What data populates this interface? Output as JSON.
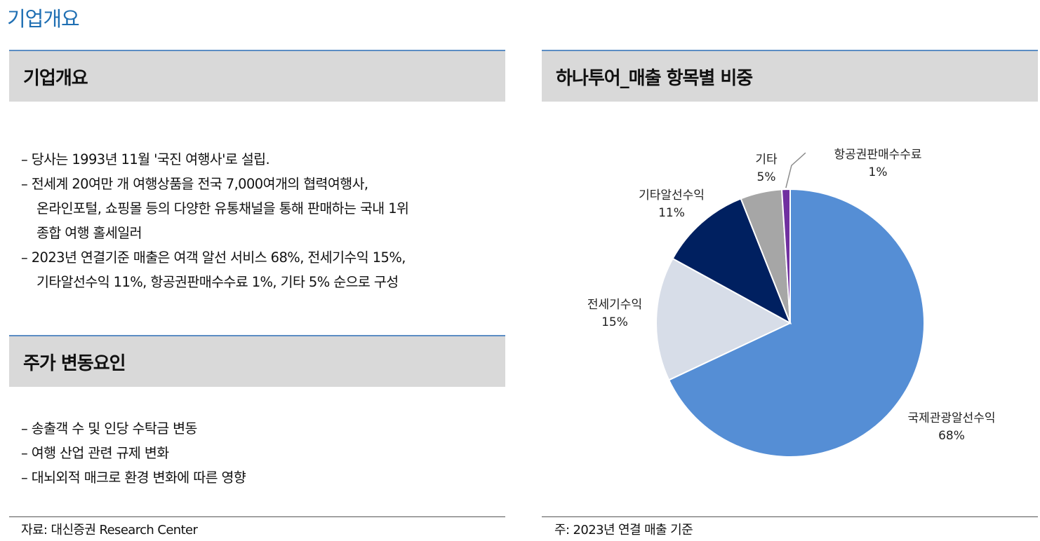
{
  "page_title": "기업개요",
  "left": {
    "overview_heading": "기업개요",
    "overview_lines": [
      "– 당사는 1993년 11월 '국진 여행사'로 설립.",
      "–  전세계  20여만  개  여행상품을  전국  7,000여개의  협력여행사,",
      "온라인포털, 쇼핑몰 등의 다양한 유통채널을 통해 판매하는 국내 1위",
      "종합 여행 홀세일러",
      "–  2023년  연결기준  매출은  여객  알선  서비스  68%,  전세기수익  15%,",
      "기타알선수익 11%, 항공권판매수수료 1%, 기타 5% 순으로 구성"
    ],
    "factors_heading": "주가 변동요인",
    "factors_lines": [
      "– 송출객 수 및 인당 수탁금 변동",
      "– 여행 산업 관련 규제 변화",
      "– 대뇌외적 매크로 환경 변화에 따른 영향"
    ],
    "source": "자료: 대신증권 Research Center"
  },
  "right": {
    "chart_heading": "하나투어_매출 항목별 비중",
    "note": "주: 2023년 연결 매출 기준"
  },
  "chart_data": {
    "type": "pie",
    "title": "하나투어_매출 항목별 비중",
    "start_angle_deg": 0,
    "direction": "clockwise",
    "slices": [
      {
        "label": "국제관광알선수익",
        "value": 68,
        "display": "68%",
        "color": "#558ed5"
      },
      {
        "label": "전세기수익",
        "value": 15,
        "display": "15%",
        "color": "#d7dde8"
      },
      {
        "label": "기타알선수익",
        "value": 11,
        "display": "11%",
        "color": "#002060"
      },
      {
        "label": "기타",
        "value": 5,
        "display": "5%",
        "color": "#a6a6a6"
      },
      {
        "label": "항공권판매수수료",
        "value": 1,
        "display": "1%",
        "color": "#7030a0"
      }
    ]
  }
}
